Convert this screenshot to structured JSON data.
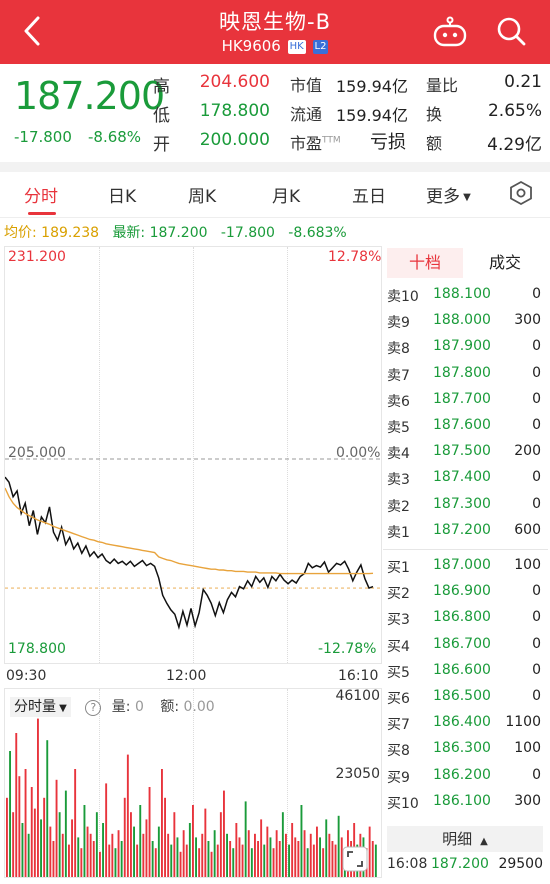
{
  "header": {
    "title": "映恩生物-B",
    "code": "HK9606",
    "tag_hk": "HK",
    "tag_l2": "L2"
  },
  "quote": {
    "price": "187.200",
    "change": "-17.800",
    "change_pct": "-8.68%",
    "high_label": "高",
    "high": "204.600",
    "low_label": "低",
    "low": "178.800",
    "open_label": "开",
    "open": "200.000",
    "mcap_label": "市值",
    "mcap": "159.94亿",
    "float_label": "流通",
    "float": "159.94亿",
    "pe_label": "市盈",
    "pe_sup": "TTM",
    "pe": "亏损",
    "vr_label": "量比",
    "vr": "0.21",
    "turnover_label": "换",
    "turnover": "2.65%",
    "amount_label": "额",
    "amount": "4.29亿"
  },
  "tabs": [
    "分时",
    "日K",
    "周K",
    "月K",
    "五日",
    "更多"
  ],
  "info": {
    "avg_label": "均价:",
    "avg": "189.238",
    "latest_label": "最新:",
    "latest": "187.200",
    "chg": "-17.800",
    "chg_pct": "-8.683%"
  },
  "chart_data": {
    "type": "line",
    "title": "",
    "ylim": [
      178.8,
      231.2
    ],
    "prev_close": 205.0,
    "y_labels": {
      "top": "231.200",
      "mid": "205.000",
      "bottom": "178.800"
    },
    "pct_labels": {
      "top": "12.78%",
      "mid": "0.00%",
      "bottom": "-12.78%"
    },
    "x_labels": [
      "09:30",
      "12:00",
      "16:10"
    ],
    "series": [
      {
        "values": [
          202.5,
          201.8,
          199.8,
          200.6,
          197.5,
          198.9,
          195.8,
          197.9,
          194.6,
          197.0,
          196.2,
          198.4,
          194.9,
          193.8,
          195.6,
          193.2,
          194.2,
          192.6,
          193.4,
          192.0,
          193.0,
          191.6,
          192.2,
          191.4,
          191.9,
          191.0,
          190.6,
          191.2,
          190.6,
          190.9,
          190.4,
          190.9,
          190.2,
          190.6,
          191.0,
          190.3,
          190.6,
          190.2,
          188.6,
          186.2,
          185.1,
          184.2,
          183.6,
          181.8,
          184.0,
          182.1,
          184.4,
          182.0,
          183.8,
          187.0,
          186.2,
          185.1,
          183.4,
          185.2,
          183.8,
          185.6,
          186.6,
          186.0,
          187.4,
          187.1,
          188.2,
          187.4,
          188.8,
          188.0,
          188.6,
          187.3,
          188.8,
          188.2,
          189.1,
          188.3,
          187.8,
          188.3,
          187.9,
          188.8,
          189.2,
          190.6,
          190.0,
          190.3,
          190.1,
          190.8,
          189.4,
          190.0,
          190.6,
          190.4,
          190.9,
          189.8,
          188.2,
          189.4,
          190.4,
          188.5,
          187.2,
          187.4
        ]
      },
      {
        "values": [
          201.0,
          199.8,
          198.9,
          198.3,
          197.9,
          197.5,
          197.2,
          196.9,
          196.6,
          196.4,
          196.2,
          196.0,
          195.7,
          195.5,
          195.3,
          195.1,
          194.9,
          194.7,
          194.5,
          194.3,
          194.1,
          193.9,
          193.8,
          193.6,
          193.5,
          193.3,
          193.2,
          193.1,
          193.0,
          192.9,
          192.8,
          192.7,
          192.6,
          192.5,
          192.4,
          192.3,
          192.2,
          192.1,
          191.5,
          191.3,
          191.1,
          191.0,
          190.8,
          190.6,
          190.5,
          190.4,
          190.3,
          190.2,
          190.1,
          190.0,
          189.9,
          189.8,
          189.8,
          189.7,
          189.7,
          189.6,
          189.6,
          189.5,
          189.5,
          189.5,
          189.4,
          189.4,
          189.4,
          189.3,
          189.3,
          189.3,
          189.3,
          189.3,
          189.2,
          189.2,
          189.2,
          189.2,
          189.2,
          189.2,
          189.2,
          189.2,
          189.2,
          189.2,
          189.2,
          189.2,
          189.2,
          189.2,
          189.2,
          189.2,
          189.2,
          189.2,
          189.2,
          189.2,
          189.2,
          189.2,
          189.2,
          189.238
        ]
      }
    ]
  },
  "volume": {
    "selector": "分时量",
    "vol_label": "量:",
    "vol": "0",
    "amt_label": "额:",
    "amt": "0.00",
    "max_label": "46100",
    "mid_label": "23050",
    "max": 46100,
    "bars": [
      22,
      35,
      18,
      40,
      28,
      15,
      30,
      12,
      25,
      19,
      44,
      16,
      22,
      38,
      14,
      10,
      27,
      18,
      12,
      24,
      9,
      16,
      30,
      11,
      8,
      20,
      14,
      12,
      10,
      18,
      7,
      15,
      26,
      9,
      12,
      8,
      13,
      10,
      22,
      34,
      18,
      14,
      9,
      20,
      12,
      16,
      25,
      10,
      8,
      14,
      30,
      22,
      12,
      9,
      18,
      11,
      7,
      13,
      9,
      15,
      20,
      11,
      8,
      12,
      19,
      10,
      7,
      13,
      9,
      18,
      24,
      12,
      10,
      8,
      15,
      11,
      9,
      21,
      13,
      8,
      12,
      10,
      16,
      9,
      14,
      11,
      8,
      13,
      10,
      18,
      12,
      9,
      15,
      11,
      10,
      20,
      13,
      8,
      12,
      9,
      14,
      11,
      8,
      16,
      12,
      10,
      9,
      17,
      11,
      8,
      13,
      10,
      15,
      9,
      12,
      11,
      8,
      14,
      10,
      9
    ],
    "up_colors": [
      "#e8343c",
      "#1a9b3a"
    ]
  },
  "orderbook": {
    "tab1": "十档",
    "tab2": "成交",
    "asks": [
      {
        "label": "卖10",
        "price": "188.100",
        "vol": "0"
      },
      {
        "label": "卖9",
        "price": "188.000",
        "vol": "300"
      },
      {
        "label": "卖8",
        "price": "187.900",
        "vol": "0"
      },
      {
        "label": "卖7",
        "price": "187.800",
        "vol": "0"
      },
      {
        "label": "卖6",
        "price": "187.700",
        "vol": "0"
      },
      {
        "label": "卖5",
        "price": "187.600",
        "vol": "0"
      },
      {
        "label": "卖4",
        "price": "187.500",
        "vol": "200"
      },
      {
        "label": "卖3",
        "price": "187.400",
        "vol": "0"
      },
      {
        "label": "卖2",
        "price": "187.300",
        "vol": "0"
      },
      {
        "label": "卖1",
        "price": "187.200",
        "vol": "600"
      }
    ],
    "bids": [
      {
        "label": "买1",
        "price": "187.000",
        "vol": "100"
      },
      {
        "label": "买2",
        "price": "186.900",
        "vol": "0"
      },
      {
        "label": "买3",
        "price": "186.800",
        "vol": "0"
      },
      {
        "label": "买4",
        "price": "186.700",
        "vol": "0"
      },
      {
        "label": "买5",
        "price": "186.600",
        "vol": "0"
      },
      {
        "label": "买6",
        "price": "186.500",
        "vol": "0"
      },
      {
        "label": "买7",
        "price": "186.400",
        "vol": "1100"
      },
      {
        "label": "买8",
        "price": "186.300",
        "vol": "100"
      },
      {
        "label": "买9",
        "price": "186.200",
        "vol": "0"
      },
      {
        "label": "买10",
        "price": "186.100",
        "vol": "300"
      }
    ],
    "detail_label": "明细",
    "trade": {
      "time": "16:08",
      "price": "187.200",
      "vol": "29500"
    }
  },
  "colors": {
    "up": "#e8343c",
    "down": "#1a9b3a",
    "avg": "#e8a33c",
    "price_line": "#111111",
    "accent": "#e8343c"
  }
}
